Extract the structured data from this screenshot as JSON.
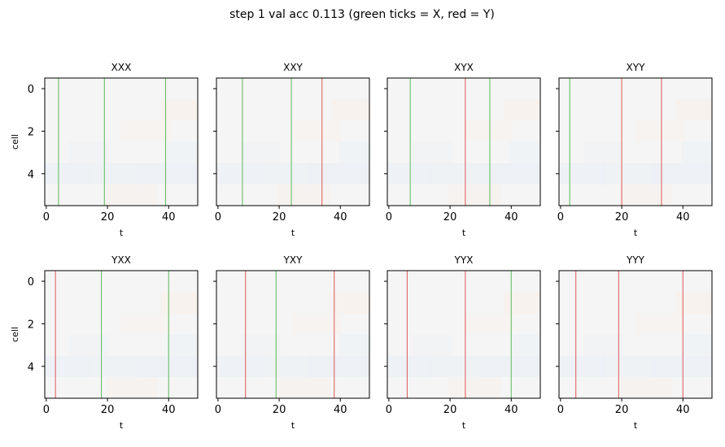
{
  "figure": {
    "suptitle": "step     1  val acc 0.113  (green ticks = X, red = Y)"
  },
  "colors": {
    "x_tick": "#6abf69",
    "y_tick": "#e06666",
    "background": "#f5f5f5",
    "cool_tint": "#edf1f5",
    "warm_tint": "#f7f1ec",
    "axes_edge": "#000000"
  },
  "chart_data": [
    {
      "type": "heatmap",
      "title": "XXX",
      "xlabel": "t",
      "ylabel": "cell",
      "xlim": [
        0,
        49
      ],
      "ylim": [
        5.5,
        -0.5
      ],
      "xticks": [
        0,
        20,
        40
      ],
      "yticks": [
        0,
        2,
        4
      ],
      "show_yticklabels": true,
      "event_markers": [
        {
          "t": 4,
          "kind": "X"
        },
        {
          "t": 19,
          "kind": "X"
        },
        {
          "t": 39,
          "kind": "X"
        }
      ]
    },
    {
      "type": "heatmap",
      "title": "XXY",
      "xlabel": "t",
      "ylabel": "",
      "xlim": [
        0,
        49
      ],
      "ylim": [
        5.5,
        -0.5
      ],
      "xticks": [
        0,
        20,
        40
      ],
      "yticks": [
        0,
        2,
        4
      ],
      "show_yticklabels": false,
      "event_markers": [
        {
          "t": 8,
          "kind": "X"
        },
        {
          "t": 24,
          "kind": "X"
        },
        {
          "t": 34,
          "kind": "Y"
        }
      ]
    },
    {
      "type": "heatmap",
      "title": "XYX",
      "xlabel": "t",
      "ylabel": "",
      "xlim": [
        0,
        49
      ],
      "ylim": [
        5.5,
        -0.5
      ],
      "xticks": [
        0,
        20,
        40
      ],
      "yticks": [
        0,
        2,
        4
      ],
      "show_yticklabels": false,
      "event_markers": [
        {
          "t": 7,
          "kind": "X"
        },
        {
          "t": 25,
          "kind": "Y"
        },
        {
          "t": 33,
          "kind": "X"
        }
      ]
    },
    {
      "type": "heatmap",
      "title": "XYY",
      "xlabel": "t",
      "ylabel": "",
      "xlim": [
        0,
        49
      ],
      "ylim": [
        5.5,
        -0.5
      ],
      "xticks": [
        0,
        20,
        40
      ],
      "yticks": [
        0,
        2,
        4
      ],
      "show_yticklabels": false,
      "event_markers": [
        {
          "t": 3,
          "kind": "X"
        },
        {
          "t": 20,
          "kind": "Y"
        },
        {
          "t": 33,
          "kind": "Y"
        }
      ]
    },
    {
      "type": "heatmap",
      "title": "YXX",
      "xlabel": "t",
      "ylabel": "cell",
      "xlim": [
        0,
        49
      ],
      "ylim": [
        5.5,
        -0.5
      ],
      "xticks": [
        0,
        20,
        40
      ],
      "yticks": [
        0,
        2,
        4
      ],
      "show_yticklabels": true,
      "event_markers": [
        {
          "t": 3,
          "kind": "Y"
        },
        {
          "t": 18,
          "kind": "X"
        },
        {
          "t": 40,
          "kind": "X"
        }
      ]
    },
    {
      "type": "heatmap",
      "title": "YXY",
      "xlabel": "t",
      "ylabel": "",
      "xlim": [
        0,
        49
      ],
      "ylim": [
        5.5,
        -0.5
      ],
      "xticks": [
        0,
        20,
        40
      ],
      "yticks": [
        0,
        2,
        4
      ],
      "show_yticklabels": false,
      "event_markers": [
        {
          "t": 9,
          "kind": "Y"
        },
        {
          "t": 19,
          "kind": "X"
        },
        {
          "t": 38,
          "kind": "Y"
        }
      ]
    },
    {
      "type": "heatmap",
      "title": "YYX",
      "xlabel": "t",
      "ylabel": "",
      "xlim": [
        0,
        49
      ],
      "ylim": [
        5.5,
        -0.5
      ],
      "xticks": [
        0,
        20,
        40
      ],
      "yticks": [
        0,
        2,
        4
      ],
      "show_yticklabels": false,
      "event_markers": [
        {
          "t": 6,
          "kind": "Y"
        },
        {
          "t": 25,
          "kind": "Y"
        },
        {
          "t": 40,
          "kind": "X"
        }
      ]
    },
    {
      "type": "heatmap",
      "title": "YYY",
      "xlabel": "t",
      "ylabel": "",
      "xlim": [
        0,
        49
      ],
      "ylim": [
        5.5,
        -0.5
      ],
      "xticks": [
        0,
        20,
        40
      ],
      "yticks": [
        0,
        2,
        4
      ],
      "show_yticklabels": false,
      "event_markers": [
        {
          "t": 5,
          "kind": "Y"
        },
        {
          "t": 19,
          "kind": "Y"
        },
        {
          "t": 40,
          "kind": "Y"
        }
      ]
    }
  ]
}
